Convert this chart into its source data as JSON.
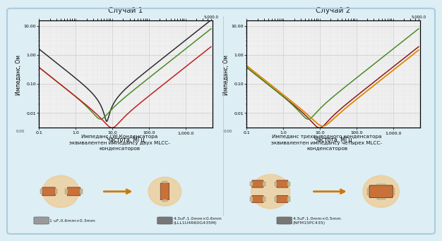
{
  "title1": "Случай 1",
  "title2": "Случай 2",
  "xlabel": "Частота, МГц",
  "ylabel": "Импеданс, Ом",
  "subtitle1": "Импеданс LW-Конденсатора\nэквивалентен импедансу двух MLCC-\nконденсаторов",
  "subtitle2": "Импеданс трехвыводного конденсатора\nэквивалентен импедансу четырех MLCC-\nконденсаторов",
  "bg_color": "#ddeef5",
  "plot_bg": "#f0f0f0",
  "colors1": [
    "#2d2d2d",
    "#c02020",
    "#4a8a2a"
  ],
  "colors2": [
    "#dd8800",
    "#8b1a1a",
    "#4a8a2a"
  ],
  "footer_text1": "1 uF,0.6mm×0.3mm",
  "footer_text2": "4.3uF,1.0mm×0.6mm\n(LLL1U4R60G435M)",
  "footer_text3": "4.3uF,1.0mm×0.5mm\n(NFM15PC435)",
  "ytick_labels": [
    "0.00",
    "0.01",
    "0.10",
    "1.00",
    "10.00"
  ],
  "xtick_labels": [
    "0.1",
    "1.0",
    "10.0",
    "100.0",
    "1,000.0",
    "5,000.0"
  ],
  "border_color": "#aaccdd"
}
